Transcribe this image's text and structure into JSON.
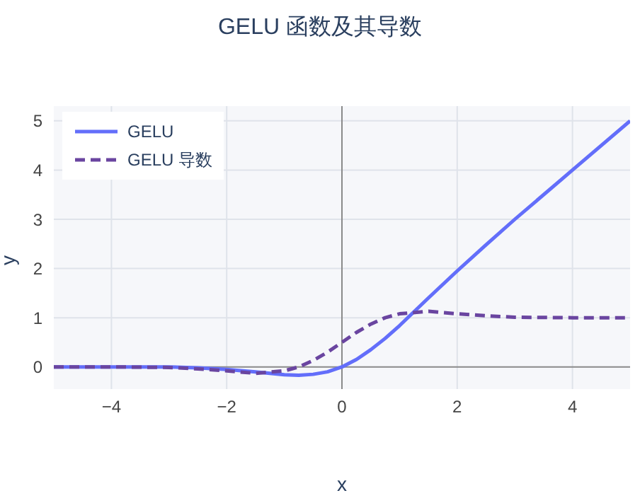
{
  "chart_data": {
    "type": "line",
    "title": "GELU 函数及其导数",
    "xlabel": "x",
    "ylabel": "y",
    "x": [
      -5,
      -4,
      -3,
      -2.5,
      -2,
      -1.5,
      -1,
      -0.75,
      -0.5,
      -0.25,
      0,
      0.25,
      0.5,
      0.75,
      1,
      1.5,
      2,
      2.5,
      3,
      4,
      5
    ],
    "series": [
      {
        "name": "GELU",
        "color": "#636efa",
        "line_style": "solid",
        "values": [
          0,
          0,
          0,
          -0.02,
          -0.05,
          -0.1,
          -0.16,
          -0.17,
          -0.15,
          -0.1,
          0,
          0.15,
          0.35,
          0.58,
          0.84,
          1.4,
          1.95,
          2.48,
          3,
          4,
          5
        ]
      },
      {
        "name": "GELU 导数",
        "color": "#6a45a0",
        "line_style": "dashed",
        "values": [
          0,
          0,
          -0.01,
          -0.04,
          -0.08,
          -0.13,
          -0.08,
          0,
          0.13,
          0.3,
          0.5,
          0.7,
          0.87,
          1,
          1.08,
          1.13,
          1.08,
          1.04,
          1.01,
          1,
          1
        ]
      }
    ],
    "xlim": [
      -5,
      5
    ],
    "xticks": [
      -4,
      -2,
      0,
      2,
      4
    ],
    "ylim": [
      -0.45,
      5.3
    ],
    "yticks": [
      0,
      1,
      2,
      3,
      4,
      5
    ],
    "grid": true,
    "legend": "top left",
    "marker": "none"
  }
}
